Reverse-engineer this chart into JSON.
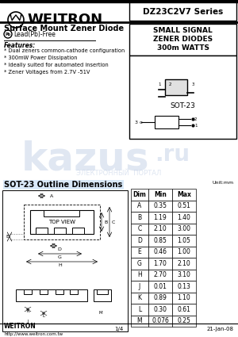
{
  "title": "DZ23C2V7 Series",
  "company": "WEITRON",
  "product": "Surface Mount Zener Diode",
  "lead_free": "Lead(Pb)-Free",
  "small_signal_lines": [
    "SMALL SIGNAL",
    "ZENER DIODES",
    "300m WATTS"
  ],
  "package": "SOT-23",
  "features_title": "Features:",
  "features": [
    "* Dual zeners common-cathode configuration",
    "* 300mW Power Dissipation",
    "* Ideally suited for automated insertion",
    "* Zener Voltages from 2.7V -51V"
  ],
  "outline_title": "SOT-23 Outline Dimensions",
  "unit_label": "Unit:mm",
  "table_headers": [
    "Dim",
    "Min",
    "Max"
  ],
  "table_rows": [
    [
      "A",
      "0.35",
      "0.51"
    ],
    [
      "B",
      "1.19",
      "1.40"
    ],
    [
      "C",
      "2.10",
      "3.00"
    ],
    [
      "D",
      "0.85",
      "1.05"
    ],
    [
      "E",
      "0.46",
      "1.00"
    ],
    [
      "G",
      "1.70",
      "2.10"
    ],
    [
      "H",
      "2.70",
      "3.10"
    ],
    [
      "J",
      "0.01",
      "0.13"
    ],
    [
      "K",
      "0.89",
      "1.10"
    ],
    [
      "L",
      "0.30",
      "0.61"
    ],
    [
      "M",
      "0.076",
      "0.25"
    ]
  ],
  "footer_company": "WEITRON",
  "footer_url": "http://www.weitron.com.tw",
  "footer_page": "1/4",
  "footer_date": "21-Jan-08",
  "bg_color": "#ffffff",
  "watermark_color": "#c8d4e8"
}
